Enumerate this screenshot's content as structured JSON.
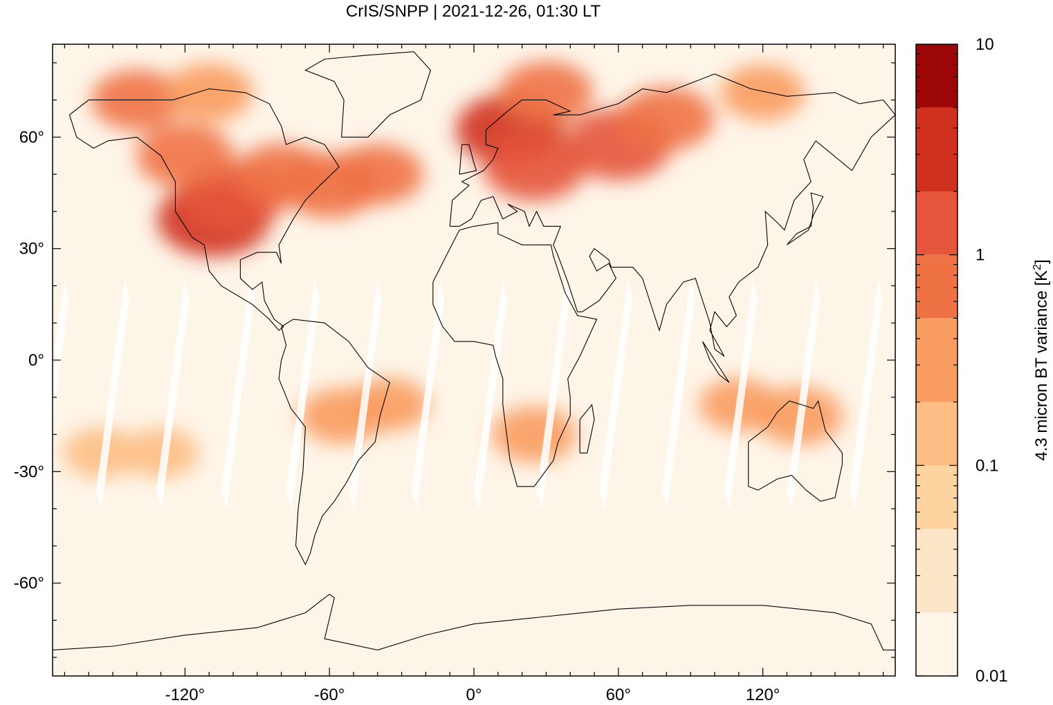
{
  "chart_data": {
    "type": "heatmap",
    "title": "CrIS/SNPP | 2021-12-26, 01:30 LT",
    "xlabel": "",
    "ylabel": "",
    "xlim": [
      -175,
      175
    ],
    "ylim": [
      -85,
      85
    ],
    "x_ticks": [
      -120,
      -60,
      0,
      60,
      120
    ],
    "x_tick_labels": [
      "-120°",
      "-60°",
      "0°",
      "60°",
      "120°"
    ],
    "y_ticks": [
      60,
      30,
      0,
      -30,
      -60
    ],
    "y_tick_labels": [
      "60°",
      "30°",
      "0°",
      "-30°",
      "-60°"
    ],
    "colorbar": {
      "label": "4.3 micron BT variance [K²]",
      "label_main": "4.3 micron BT variance [K",
      "label_sup": "2",
      "label_close": "]",
      "scale": "log",
      "range": [
        0.01,
        10
      ],
      "tick_values": [
        10,
        1,
        0.1,
        0.01
      ],
      "tick_labels": [
        "10",
        "1",
        "0.1",
        "0.01"
      ],
      "levels": [
        0.01,
        0.02,
        0.05,
        0.1,
        0.2,
        0.5,
        1,
        2,
        5,
        10
      ],
      "colors": [
        "#fef5e9",
        "#fde6c8",
        "#fdd4a0",
        "#fcbe84",
        "#f99c61",
        "#ef7245",
        "#e4553b",
        "#d0311f",
        "#9c0606"
      ]
    },
    "regions": [
      {
        "lon": -108,
        "lat": 38,
        "value": 3.0
      },
      {
        "lon": -100,
        "lat": 44,
        "value": 1.5
      },
      {
        "lon": -120,
        "lat": 55,
        "value": 0.8
      },
      {
        "lon": -80,
        "lat": 50,
        "value": 0.6
      },
      {
        "lon": -60,
        "lat": 47,
        "value": 0.9
      },
      {
        "lon": -40,
        "lat": 50,
        "value": 0.5
      },
      {
        "lon": 15,
        "lat": 62,
        "value": 2.0
      },
      {
        "lon": 25,
        "lat": 52,
        "value": 1.2
      },
      {
        "lon": 60,
        "lat": 58,
        "value": 1.8
      },
      {
        "lon": 80,
        "lat": 65,
        "value": 0.7
      },
      {
        "lon": 30,
        "lat": 72,
        "value": 0.6
      },
      {
        "lon": -140,
        "lat": 70,
        "value": 0.5
      },
      {
        "lon": -110,
        "lat": 72,
        "value": 0.4
      },
      {
        "lon": 120,
        "lat": 72,
        "value": 0.3
      },
      {
        "lon": -55,
        "lat": -15,
        "value": 0.3
      },
      {
        "lon": -35,
        "lat": -12,
        "value": 0.2
      },
      {
        "lon": 25,
        "lat": -20,
        "value": 0.3
      },
      {
        "lon": 135,
        "lat": -15,
        "value": 0.4
      },
      {
        "lon": 110,
        "lat": -12,
        "value": 0.2
      },
      {
        "lon": -155,
        "lat": -25,
        "value": 0.15
      },
      {
        "lon": -130,
        "lat": -25,
        "value": 0.15
      }
    ],
    "coastline_color": "#000000",
    "grid": false
  }
}
